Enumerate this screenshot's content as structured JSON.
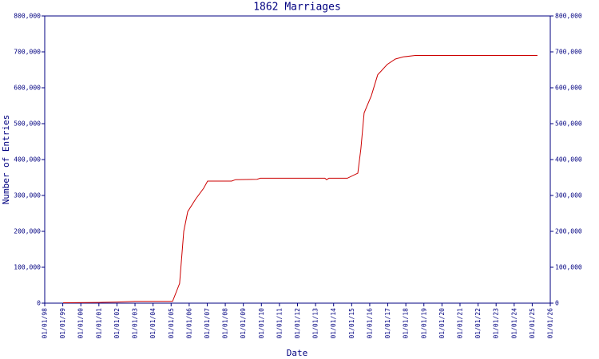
{
  "chart_data": {
    "type": "line",
    "title": "1862 Marriages",
    "x_label": "Date",
    "y_label": "Number of Entries",
    "x": [
      1999.02,
      2001.0,
      2002.0,
      2003.0,
      2005.08,
      2005.47,
      2005.7,
      2005.92,
      2006.36,
      2006.8,
      2007.02,
      2008.35,
      2008.57,
      2009.76,
      2009.94,
      2013.52,
      2013.61,
      2013.74,
      2014.76,
      2015.34,
      2015.51,
      2015.69,
      2016.09,
      2016.44,
      2016.97,
      2017.42,
      2017.86,
      2018.52,
      2025.29
    ],
    "series": [
      {
        "color": "#cc0000",
        "values": [
          1000,
          2000,
          3000,
          5000,
          5000,
          55000,
          200000,
          255000,
          290000,
          320000,
          340000,
          340000,
          344000,
          345000,
          348000,
          348000,
          344000,
          348000,
          348000,
          362000,
          430000,
          530000,
          578000,
          636000,
          665000,
          680000,
          686000,
          690000,
          690000
        ]
      }
    ],
    "xlim": [
      1998,
      2026
    ],
    "xticks": [
      {
        "value": 1998,
        "label": "01/01/98"
      },
      {
        "value": 1999,
        "label": "01/01/99"
      },
      {
        "value": 2000,
        "label": "01/01/00"
      },
      {
        "value": 2001,
        "label": "01/01/01"
      },
      {
        "value": 2002,
        "label": "01/01/02"
      },
      {
        "value": 2003,
        "label": "01/01/03"
      },
      {
        "value": 2004,
        "label": "01/01/04"
      },
      {
        "value": 2005,
        "label": "01/01/05"
      },
      {
        "value": 2006,
        "label": "01/01/06"
      },
      {
        "value": 2007,
        "label": "01/01/07"
      },
      {
        "value": 2008,
        "label": "01/01/08"
      },
      {
        "value": 2009,
        "label": "01/01/09"
      },
      {
        "value": 2010,
        "label": "01/01/10"
      },
      {
        "value": 2011,
        "label": "01/01/11"
      },
      {
        "value": 2012,
        "label": "01/01/12"
      },
      {
        "value": 2013,
        "label": "01/01/13"
      },
      {
        "value": 2014,
        "label": "01/01/14"
      },
      {
        "value": 2015,
        "label": "01/01/15"
      },
      {
        "value": 2016,
        "label": "01/01/16"
      },
      {
        "value": 2017,
        "label": "01/01/17"
      },
      {
        "value": 2018,
        "label": "01/01/18"
      },
      {
        "value": 2019,
        "label": "01/01/19"
      },
      {
        "value": 2020,
        "label": "01/01/20"
      },
      {
        "value": 2021,
        "label": "01/01/21"
      },
      {
        "value": 2022,
        "label": "01/01/22"
      },
      {
        "value": 2023,
        "label": "01/01/23"
      },
      {
        "value": 2024,
        "label": "01/01/24"
      },
      {
        "value": 2025,
        "label": "01/01/25"
      },
      {
        "value": 2026,
        "label": "01/01/26"
      }
    ],
    "ylim": [
      0,
      800000
    ],
    "yticks": [
      0,
      {
        "value": 100000,
        "label": "100,000"
      },
      {
        "value": 200000,
        "label": "200,000"
      },
      {
        "value": 300000,
        "label": "300,000"
      },
      {
        "value": 400000,
        "label": "400,000"
      },
      {
        "value": 500000,
        "label": "500,000"
      },
      {
        "value": 600000,
        "label": "600,000"
      },
      {
        "value": 700000,
        "label": "700,000"
      },
      {
        "value": 800000,
        "label": "800,000"
      }
    ],
    "axis_color": "#000080"
  }
}
